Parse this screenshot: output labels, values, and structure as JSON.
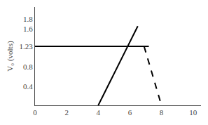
{
  "chart_data": {
    "type": "line",
    "ylabel": "V₀ (volts)",
    "xlim": [
      0,
      10.5
    ],
    "ylim": [
      0,
      2.05
    ],
    "xticks": [
      0,
      2,
      4,
      6,
      8,
      10
    ],
    "yticks": [
      0.4,
      0.8,
      1.23,
      1.6,
      1.8
    ],
    "grid": false,
    "series": [
      {
        "x": [
          0,
          7.2
        ],
        "values": [
          1.23,
          1.23
        ],
        "color": "#000000",
        "line_style": "solid"
      },
      {
        "x": [
          4.0,
          6.5
        ],
        "values": [
          0.0,
          1.65
        ],
        "color": "#000000",
        "line_style": "solid"
      },
      {
        "x": [
          6.9,
          8.0
        ],
        "values": [
          1.23,
          0.0
        ],
        "color": "#000000",
        "line_style": "dashed"
      }
    ]
  }
}
